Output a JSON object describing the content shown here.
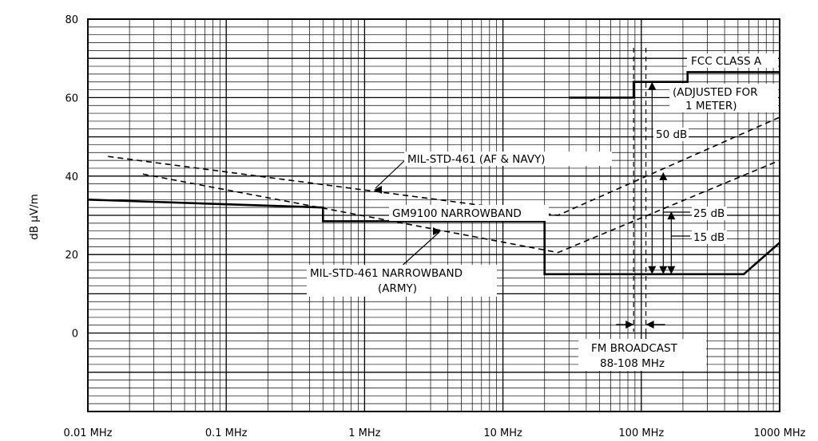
{
  "chart_data": {
    "type": "line",
    "title": "",
    "xlabel": "",
    "ylabel": "dB μV/m",
    "x_scale": "log",
    "xlim": [
      0.01,
      1000
    ],
    "ylim": [
      -20,
      80
    ],
    "grid": true,
    "x_tick_values": [
      0.01,
      0.1,
      1,
      10,
      100,
      1000
    ],
    "x_tick_labels": [
      "0.01 MHz",
      "0.1 MHz",
      "1 MHz",
      "10 MHz",
      "100 MHz",
      "1000 MHz"
    ],
    "y_tick_values": [
      0,
      20,
      40,
      60,
      80
    ],
    "y_tick_labels": [
      "0",
      "20",
      "40",
      "60",
      "80"
    ],
    "series": [
      {
        "name": "GM9100 NARROWBAND",
        "style": "solid-bold",
        "x": [
          0.01,
          0.5,
          0.5,
          20,
          20,
          550,
          1000
        ],
        "y": [
          34,
          32,
          28.5,
          28.5,
          15,
          15,
          23
        ]
      },
      {
        "name": "MIL-STD-461 (AF & NAVY)",
        "style": "dashed",
        "x": [
          0.014,
          25,
          1000
        ],
        "y": [
          45,
          30,
          55
        ]
      },
      {
        "name": "MIL-STD-461 NARROWBAND",
        "style": "dashed",
        "x": [
          0.025,
          25,
          1000
        ],
        "y": [
          40.5,
          20.5,
          44
        ]
      },
      {
        "name": "FCC CLASS A",
        "style": "solid-bold",
        "x": [
          30,
          88,
          88,
          216,
          216,
          1000
        ],
        "y": [
          60,
          60,
          64,
          64,
          66.5,
          66.5
        ]
      }
    ],
    "annotations": {
      "fcc": "FCC CLASS A",
      "fcc_adj1": "(ADJUSTED FOR",
      "fcc_adj2": "1 METER)",
      "mil_af": "MIL-STD-461 (AF & NAVY)",
      "gm9100": "GM9100 NARROWBAND",
      "mil_army1": "MIL-STD-461 NARROWBAND",
      "mil_army2": "(ARMY)",
      "fm1": "FM BROADCAST",
      "fm2": "88-108 MHz",
      "db50": "50 dB",
      "db25": "25 dB",
      "db15": "15 dB"
    },
    "fm_band": [
      88,
      108
    ],
    "margin_x": 115,
    "colors": {
      "line": "#000000",
      "grid": "#000000",
      "background": "#ffffff"
    }
  }
}
